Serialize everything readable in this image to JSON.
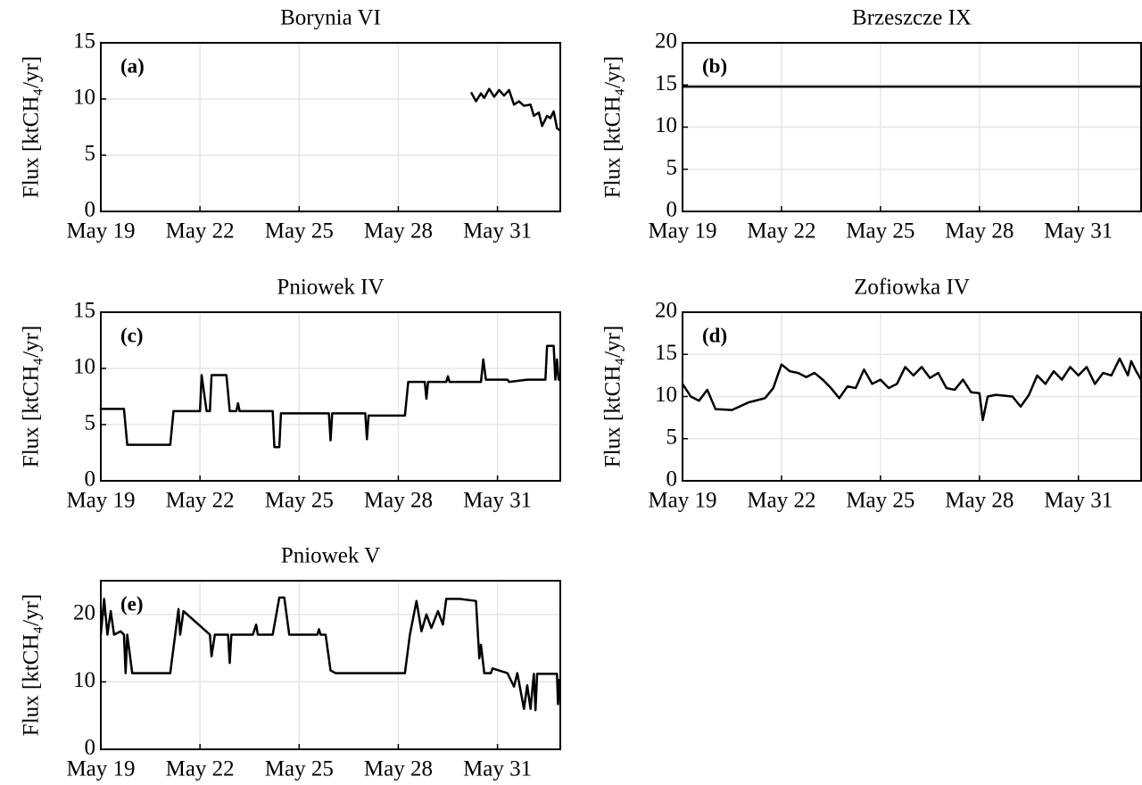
{
  "chart_data": [
    {
      "type": "line",
      "title": "Borynia VI",
      "annotation": "(a)",
      "y_label": "Flux [ktCH₄/yr]",
      "color": "#000000",
      "grid": true,
      "xlim": [
        19,
        32.9
      ],
      "xticks": [
        {
          "value": 19,
          "label": "May 19"
        },
        {
          "value": 22,
          "label": "May 22"
        },
        {
          "value": 25,
          "label": "May 25"
        },
        {
          "value": 28,
          "label": "May 28"
        },
        {
          "value": 31,
          "label": "May 31"
        }
      ],
      "ylim": [
        0,
        15
      ],
      "yticks": [
        0,
        5,
        10,
        15
      ],
      "x": [
        30.2,
        30.35,
        30.5,
        30.6,
        30.75,
        30.9,
        31.05,
        31.2,
        31.35,
        31.5,
        31.65,
        31.8,
        32.0,
        32.1,
        32.25,
        32.35,
        32.5,
        32.6,
        32.7,
        32.8,
        32.9
      ],
      "values": [
        10.6,
        9.8,
        10.5,
        10.1,
        10.9,
        10.2,
        10.8,
        10.3,
        10.8,
        9.5,
        9.8,
        9.4,
        9.5,
        8.5,
        8.8,
        7.6,
        8.5,
        8.3,
        8.9,
        7.4,
        7.2
      ]
    },
    {
      "type": "line",
      "title": "Brzeszcze IX",
      "annotation": "(b)",
      "y_label": "Flux [ktCH₄/yr]",
      "color": "#000000",
      "grid": true,
      "xlim": [
        19,
        32.9
      ],
      "xticks": [
        {
          "value": 19,
          "label": "May 19"
        },
        {
          "value": 22,
          "label": "May 22"
        },
        {
          "value": 25,
          "label": "May 25"
        },
        {
          "value": 28,
          "label": "May 28"
        },
        {
          "value": 31,
          "label": "May 31"
        }
      ],
      "ylim": [
        0,
        20
      ],
      "yticks": [
        0,
        5,
        10,
        15,
        20
      ],
      "x": [
        19,
        32.9
      ],
      "values": [
        14.8,
        14.8
      ]
    },
    {
      "type": "line",
      "title": "Pniowek IV",
      "annotation": "(c)",
      "y_label": "Flux [ktCH₄/yr]",
      "color": "#000000",
      "grid": true,
      "xlim": [
        19,
        32.9
      ],
      "xticks": [
        {
          "value": 19,
          "label": "May 19"
        },
        {
          "value": 22,
          "label": "May 22"
        },
        {
          "value": 25,
          "label": "May 25"
        },
        {
          "value": 28,
          "label": "May 28"
        },
        {
          "value": 31,
          "label": "May 31"
        }
      ],
      "ylim": [
        0,
        15
      ],
      "yticks": [
        0,
        5,
        10,
        15
      ],
      "x": [
        19,
        19.7,
        19.8,
        21.1,
        21.2,
        21.3,
        22.0,
        22.05,
        22.2,
        22.3,
        22.35,
        22.8,
        22.9,
        23.1,
        23.15,
        23.2,
        24.2,
        24.25,
        24.4,
        24.45,
        25.9,
        25.95,
        26.0,
        27.0,
        27.05,
        27.1,
        27.15,
        28.2,
        28.3,
        28.4,
        28.8,
        28.85,
        28.9,
        29.45,
        29.5,
        29.55,
        30.5,
        30.57,
        30.65,
        31.3,
        31.35,
        31.9,
        32.45,
        32.5,
        32.7,
        32.75,
        32.8,
        32.85,
        32.9
      ],
      "values": [
        6.4,
        6.4,
        3.2,
        3.2,
        6.2,
        6.2,
        6.2,
        9.4,
        6.2,
        6.2,
        9.4,
        9.4,
        6.2,
        6.2,
        6.9,
        6.2,
        6.2,
        3.0,
        3.0,
        6.0,
        6.0,
        3.6,
        6.0,
        6.0,
        3.7,
        5.8,
        5.8,
        5.8,
        8.8,
        8.8,
        8.8,
        7.3,
        8.8,
        8.8,
        9.3,
        8.8,
        8.8,
        10.8,
        9.0,
        9.0,
        8.8,
        9.0,
        9.0,
        12.0,
        12.0,
        9.0,
        10.8,
        9.0,
        9.0
      ]
    },
    {
      "type": "line",
      "title": "Zofiowka IV",
      "annotation": "(d)",
      "y_label": "Flux [ktCH₄/yr]",
      "color": "#000000",
      "grid": true,
      "xlim": [
        19,
        32.9
      ],
      "xticks": [
        {
          "value": 19,
          "label": "May 19"
        },
        {
          "value": 22,
          "label": "May 22"
        },
        {
          "value": 25,
          "label": "May 25"
        },
        {
          "value": 28,
          "label": "May 28"
        },
        {
          "value": 31,
          "label": "May 31"
        }
      ],
      "ylim": [
        0,
        20
      ],
      "yticks": [
        0,
        5,
        10,
        15,
        20
      ],
      "x": [
        19,
        19.25,
        19.5,
        19.75,
        20,
        20.5,
        21,
        21.5,
        21.75,
        22,
        22.25,
        22.5,
        22.75,
        23,
        23.25,
        23.5,
        23.75,
        24,
        24.25,
        24.5,
        24.75,
        25,
        25.25,
        25.5,
        25.75,
        26,
        26.25,
        26.5,
        26.75,
        27,
        27.25,
        27.5,
        27.75,
        28,
        28.1,
        28.25,
        28.5,
        29,
        29.25,
        29.5,
        29.75,
        30,
        30.25,
        30.5,
        30.75,
        31,
        31.25,
        31.5,
        31.75,
        32,
        32.25,
        32.5,
        32.6,
        32.75,
        32.9
      ],
      "values": [
        11.5,
        10,
        9.5,
        10.8,
        8.5,
        8.4,
        9.3,
        9.8,
        11,
        13.8,
        13,
        12.8,
        12.3,
        12.8,
        12,
        11,
        9.8,
        11.2,
        11,
        13.2,
        11.5,
        12,
        11,
        11.5,
        13.5,
        12.5,
        13.5,
        12.2,
        12.8,
        11,
        10.8,
        12,
        10.5,
        10.4,
        7.2,
        10,
        10.2,
        10,
        8.8,
        10.2,
        12.5,
        11.5,
        13,
        12,
        13.5,
        12.5,
        13.5,
        11.5,
        12.8,
        12.5,
        14.5,
        12.5,
        14.2,
        13,
        12
      ]
    },
    {
      "type": "line",
      "title": "Pniowek V",
      "annotation": "(e)",
      "y_label": "Flux [ktCH₄/yr]",
      "color": "#000000",
      "grid": true,
      "xlim": [
        19,
        32.9
      ],
      "xticks": [
        {
          "value": 19,
          "label": "May 19"
        },
        {
          "value": 22,
          "label": "May 22"
        },
        {
          "value": 25,
          "label": "May 25"
        },
        {
          "value": 28,
          "label": "May 28"
        },
        {
          "value": 31,
          "label": "May 31"
        }
      ],
      "ylim": [
        0,
        25
      ],
      "yticks": [
        0,
        10,
        20
      ],
      "x": [
        19,
        19.1,
        19.2,
        19.3,
        19.4,
        19.6,
        19.7,
        19.75,
        19.8,
        19.95,
        21.1,
        21.25,
        21.35,
        21.4,
        21.5,
        22.3,
        22.35,
        22.45,
        22.85,
        22.9,
        22.95,
        23.6,
        23.7,
        23.75,
        24.2,
        24.4,
        24.55,
        24.7,
        25.55,
        25.6,
        25.65,
        25.8,
        25.95,
        26.1,
        28.2,
        28.35,
        28.55,
        28.7,
        28.85,
        29.0,
        29.2,
        29.35,
        29.45,
        29.85,
        30.35,
        30.45,
        30.5,
        30.6,
        30.8,
        30.85,
        31.3,
        31.5,
        31.6,
        31.8,
        31.9,
        32.0,
        32.1,
        32.15,
        32.2,
        32.8,
        32.83,
        32.87,
        32.9
      ],
      "values": [
        17,
        22.3,
        17,
        20.5,
        17,
        17.5,
        17,
        11.3,
        17,
        11.3,
        11.3,
        17,
        20.8,
        17,
        20.5,
        17,
        13.8,
        17,
        17,
        12.8,
        17,
        17,
        18.5,
        17,
        17,
        22.5,
        22.5,
        17,
        17,
        17.8,
        17,
        17,
        11.7,
        11.3,
        11.3,
        17,
        22,
        17.5,
        20,
        18,
        20.5,
        18.5,
        22.3,
        22.3,
        22,
        13.5,
        15.5,
        11.3,
        11.3,
        12,
        11.3,
        9.3,
        11.3,
        6,
        9.5,
        6,
        11.2,
        5.8,
        11.2,
        11.2,
        6.7,
        10.3,
        10.3
      ]
    }
  ]
}
